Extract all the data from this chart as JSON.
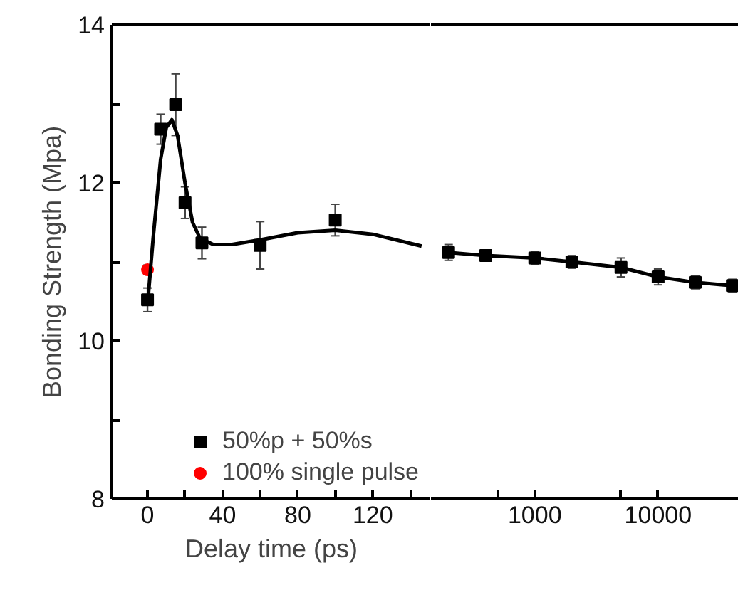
{
  "chart_data": [
    {
      "type": "scatter",
      "ylabel": "Bonding Strength (Mpa)",
      "xlabel": "Delay time (ps)",
      "xlim": [
        -19,
        151
      ],
      "ylim": [
        8,
        14
      ],
      "xticks": [
        0,
        {
          "value": 20,
          "label": null
        },
        40,
        {
          "value": 60,
          "label": null
        },
        80,
        {
          "value": 100,
          "label": null
        },
        120,
        {
          "value": 140,
          "label": null
        }
      ],
      "yticks": [
        8,
        {
          "value": 9,
          "label": null
        },
        10,
        {
          "value": 11,
          "label": null
        },
        12,
        {
          "value": 13,
          "label": null
        },
        14
      ],
      "grid": false,
      "legend": "bottom right",
      "series": [
        {
          "name": "50%p + 50%s",
          "color": "#000000",
          "marker": "square",
          "x": [
            0,
            7,
            15,
            20,
            29,
            60,
            100
          ],
          "values": [
            10.52,
            12.68,
            12.99,
            11.75,
            11.24,
            11.21,
            11.53
          ],
          "errors": [
            0.15,
            0.19,
            0.39,
            0.2,
            0.2,
            0.3,
            0.2
          ]
        },
        {
          "name": "100% single pulse",
          "color": "#ff0000",
          "marker": "circle",
          "x": [
            0
          ],
          "values": [
            10.9
          ],
          "errors": [
            0.06
          ]
        },
        {
          "type": "line",
          "color": "#000000",
          "marker": "none",
          "x": [
            0,
            3,
            7,
            10,
            13,
            16,
            20,
            24,
            28,
            35,
            45,
            60,
            80,
            100,
            120,
            146
          ],
          "values": [
            10.45,
            11.3,
            12.3,
            12.7,
            12.8,
            12.6,
            12.0,
            11.5,
            11.3,
            11.22,
            11.22,
            11.28,
            11.37,
            11.4,
            11.35,
            11.2
          ]
        }
      ]
    },
    {
      "type": "line",
      "log": "x",
      "tick_labels": "x",
      "xlim": [
        144,
        45000
      ],
      "ylim": [
        8,
        14
      ],
      "xticks": [
        {
          "value": 500,
          "label": null
        },
        1000,
        {
          "value": 5000,
          "label": null
        },
        10000
      ],
      "grid": false,
      "series": [
        {
          "color": "#000000",
          "marker": "square",
          "x": [
            200,
            400,
            1000,
            2000,
            5000,
            10000,
            20000,
            40000
          ],
          "values": [
            11.12,
            11.08,
            11.05,
            11.0,
            10.93,
            10.81,
            10.74,
            10.7
          ],
          "errors": [
            0.1,
            0.06,
            0.08,
            0.08,
            0.12,
            0.1,
            0.08,
            0.08
          ]
        }
      ]
    }
  ]
}
